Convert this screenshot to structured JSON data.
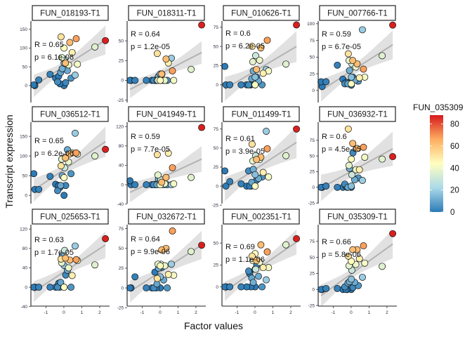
{
  "chart_data": {
    "type": "scatter",
    "layout": "facet grid 3 rows x 4 columns, free y scales, shared x",
    "xlabel": "Factor values",
    "ylabel": "Transcript expression",
    "x_ticks": [
      -1,
      0,
      1,
      2
    ],
    "xlim": [
      -1.84,
      2.55
    ],
    "color_legend": {
      "title": "FUN_035309",
      "ticks": [
        0,
        20,
        40,
        60,
        80
      ],
      "range": [
        0,
        88
      ],
      "palette": [
        "#2c7bb6",
        "#abd9e9",
        "#ffffbf",
        "#fdae61",
        "#d7191c"
      ],
      "placement": "right"
    },
    "trend_line": "linear fit with grey confidence band",
    "sample_x": [
      2.32,
      1.73,
      0.69,
      0.33,
      0.09,
      -0.16,
      0.46,
      0.01,
      0.26,
      -0.12,
      0.76,
      0.04,
      0.63,
      0.01,
      -0.18,
      0.2,
      0.4,
      -0.35,
      0.01,
      -0.22,
      -0.46,
      -0.77,
      -1.4,
      -1.62,
      -1.68,
      -0.09,
      -0.29,
      0.1
    ],
    "sample_color_value": [
      87,
      36,
      68,
      62,
      62,
      52,
      48,
      44,
      39,
      37,
      41,
      30,
      19,
      16,
      10,
      11,
      6,
      4,
      0,
      0,
      0,
      1.5,
      1.5,
      0,
      0,
      12,
      0,
      3
    ],
    "panels": [
      {
        "title": "FUN_018193-T1",
        "R": "R = 0.65",
        "p": "p = 6.1e-06",
        "ylim": [
          -45,
          172
        ],
        "y_ticks": [
          0,
          50,
          100,
          150
        ],
        "y": [
          120,
          103,
          125,
          115,
          60,
          130,
          88,
          100,
          55,
          75,
          57,
          70,
          28,
          60,
          35,
          40,
          20,
          10,
          0,
          5,
          20,
          30,
          15,
          0,
          2,
          45,
          25,
          8
        ]
      },
      {
        "title": "FUN_018311-T1",
        "R": "R = 0.64",
        "p": "p = 1.2e-05",
        "ylim": [
          -28,
          75
        ],
        "y_ticks": [
          -25,
          0,
          25,
          50
        ],
        "y": [
          70,
          14,
          12,
          27,
          8,
          34,
          22,
          0,
          0,
          0,
          0,
          0,
          28,
          8,
          0,
          0,
          0,
          0,
          0,
          0,
          0,
          0,
          0,
          0,
          0,
          5,
          0,
          8
        ]
      },
      {
        "title": "FUN_010626-T1",
        "R": "R = 0.6",
        "p": "p = 6.2e-05",
        "ylim": [
          -23,
          83
        ],
        "y_ticks": [
          0,
          25,
          50,
          75
        ],
        "y": [
          78,
          27,
          58,
          48,
          20,
          50,
          15,
          0,
          32,
          30,
          18,
          38,
          20,
          10,
          8,
          5,
          0,
          0,
          0,
          0,
          0,
          0,
          0,
          0,
          24,
          18,
          0,
          10
        ]
      },
      {
        "title": "FUN_007766-T1",
        "R": "R = 0.59",
        "p": "p = 6.7e-05",
        "ylim": [
          -18,
          104
        ],
        "y_ticks": [
          0,
          25,
          50,
          75,
          100
        ],
        "y": [
          98,
          52,
          32,
          40,
          45,
          55,
          19,
          10,
          35,
          45,
          20,
          40,
          91,
          20,
          10,
          15,
          14,
          10,
          8,
          12,
          17,
          38,
          13,
          6,
          13,
          30,
          12,
          20
        ]
      },
      {
        "title": "FUN_036512-T1",
        "R": "R = 0.65",
        "p": "p = 6.2e-06",
        "ylim": [
          -21,
          186
        ],
        "y_ticks": [
          0,
          50,
          100,
          150
        ],
        "y": [
          117,
          100,
          108,
          105,
          95,
          75,
          108,
          45,
          85,
          92,
          105,
          70,
          158,
          95,
          25,
          116,
          55,
          12,
          0,
          20,
          28,
          48,
          15,
          15,
          55,
          50,
          25,
          25
        ]
      },
      {
        "title": "FUN_041949-T1",
        "R": "R = 0.59",
        "p": "p = 7.7e-05",
        "ylim": [
          -39,
          129
        ],
        "y_ticks": [
          -40,
          0,
          40,
          80,
          120
        ],
        "y": [
          118,
          15,
          35,
          15,
          5,
          62,
          65,
          0,
          2,
          20,
          2,
          10,
          0,
          5,
          0,
          0,
          0,
          0,
          0,
          0,
          0,
          0,
          0,
          0,
          8,
          12,
          0,
          3
        ]
      },
      {
        "title": "FUN_011499-T1",
        "R": "R = 0.61",
        "p": "p = 3.9e-05",
        "ylim": [
          -23,
          84
        ],
        "y_ticks": [
          -25,
          0,
          25,
          50,
          75
        ],
        "y": [
          75,
          40,
          49,
          38,
          35,
          55,
          18,
          0,
          35,
          33,
          12,
          40,
          72,
          15,
          5,
          10,
          12,
          20,
          0,
          0,
          0,
          3,
          6,
          0,
          20,
          22,
          0,
          8
        ]
      },
      {
        "title": "FUN_036932-T1",
        "R": "R = 0.6",
        "p": "p = 4.5e-05",
        "ylim": [
          -26,
          104
        ],
        "y_ticks": [
          -25,
          0,
          25,
          50,
          75
        ],
        "y": [
          49,
          45,
          64,
          62,
          70,
          93,
          28,
          45,
          28,
          35,
          48,
          20,
          11,
          2,
          0,
          12,
          15,
          5,
          0,
          0,
          0,
          0,
          2,
          0,
          0,
          30,
          2,
          55
        ]
      },
      {
        "title": "FUN_025653-T1",
        "R": "R = 0.63",
        "p": "p = 1.7e-05",
        "ylim": [
          -39,
          129
        ],
        "y_ticks": [
          -40,
          0,
          40,
          80,
          120
        ],
        "y": [
          100,
          46,
          57,
          56,
          60,
          58,
          24,
          0,
          40,
          50,
          55,
          76,
          85,
          45,
          10,
          35,
          0,
          0,
          0,
          0,
          0,
          0,
          0,
          0,
          0,
          65,
          8,
          25
        ]
      },
      {
        "title": "FUN_032672-T1",
        "R": "R = 0.64",
        "p": "p = 9.9e-06",
        "ylim": [
          -23,
          80
        ],
        "y_ticks": [
          -25,
          0,
          25,
          50,
          75
        ],
        "y": [
          54,
          46,
          72,
          50,
          48,
          12,
          17,
          28,
          28,
          30,
          16,
          30,
          30,
          14,
          5,
          10,
          0,
          0,
          0,
          0,
          0,
          0,
          14,
          0,
          0,
          25,
          20,
          26
        ]
      },
      {
        "title": "FUN_002351-T1",
        "R": "R = 0.69",
        "p": "p = 1.1e-06",
        "ylim": [
          -22,
          71
        ],
        "y_ticks": [
          0,
          25,
          50
        ],
        "y": [
          55,
          48,
          40,
          48,
          30,
          35,
          22,
          38,
          28,
          30,
          22,
          20,
          8,
          20,
          10,
          12,
          0,
          18,
          0,
          0,
          0,
          0,
          0,
          0,
          0,
          5,
          15,
          25
        ]
      },
      {
        "title": "FUN_035309-T1",
        "R": "R = 0.66",
        "p": "p = 5.8e-06",
        "ylim": [
          -26,
          101
        ],
        "y_ticks": [
          -25,
          0,
          25,
          50,
          75
        ],
        "y": [
          87,
          36,
          68,
          62,
          62,
          52,
          48,
          44,
          39,
          37,
          41,
          30,
          19,
          16,
          10,
          11,
          6,
          4,
          0,
          0,
          0,
          1.5,
          1.5,
          0,
          0,
          12,
          0,
          3
        ]
      }
    ]
  }
}
